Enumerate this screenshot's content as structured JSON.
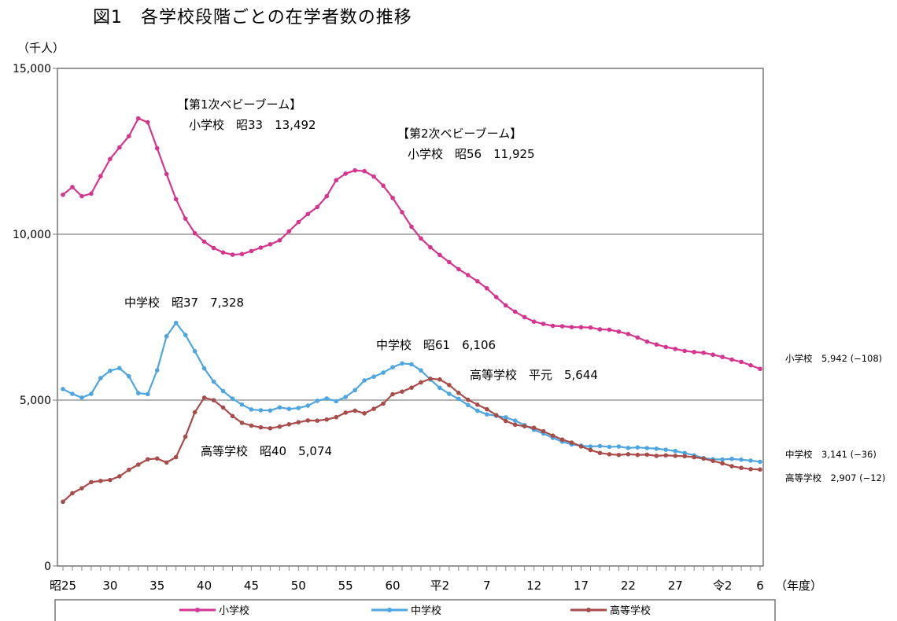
{
  "chart_data": {
    "type": "line",
    "title": "図1　各学校段階ごとの在学者数の推移",
    "ylabel": "（千人）",
    "xlabel": "（年度）",
    "ylim": [
      0,
      15000
    ],
    "yticks": [
      "0",
      "5,000",
      "10,000",
      "15,000"
    ],
    "ytick_values": [
      0,
      5000,
      10000,
      15000
    ],
    "grid": "horizontal at 5,000 and 10,000",
    "legend_position": "bottom",
    "x_years": [
      1950,
      1951,
      1952,
      1953,
      1954,
      1955,
      1956,
      1957,
      1958,
      1959,
      1960,
      1961,
      1962,
      1963,
      1964,
      1965,
      1966,
      1967,
      1968,
      1969,
      1970,
      1971,
      1972,
      1973,
      1974,
      1975,
      1976,
      1977,
      1978,
      1979,
      1980,
      1981,
      1982,
      1983,
      1984,
      1985,
      1986,
      1987,
      1988,
      1989,
      1990,
      1991,
      1992,
      1993,
      1994,
      1995,
      1996,
      1997,
      1998,
      1999,
      2000,
      2001,
      2002,
      2003,
      2004,
      2005,
      2006,
      2007,
      2008,
      2009,
      2010,
      2011,
      2012,
      2013,
      2014,
      2015,
      2016,
      2017,
      2018,
      2019,
      2020,
      2021,
      2022,
      2023,
      2024
    ],
    "xtick_labels": [
      {
        "label": "昭25",
        "year": 1950
      },
      {
        "label": "30",
        "year": 1955
      },
      {
        "label": "35",
        "year": 1960
      },
      {
        "label": "40",
        "year": 1965
      },
      {
        "label": "45",
        "year": 1970
      },
      {
        "label": "50",
        "year": 1975
      },
      {
        "label": "55",
        "year": 1980
      },
      {
        "label": "60",
        "year": 1985
      },
      {
        "label": "平2",
        "year": 1990
      },
      {
        "label": "7",
        "year": 1995
      },
      {
        "label": "12",
        "year": 2000
      },
      {
        "label": "17",
        "year": 2005
      },
      {
        "label": "22",
        "year": 2010
      },
      {
        "label": "27",
        "year": 2015
      },
      {
        "label": "令2",
        "year": 2020
      },
      {
        "label": "6",
        "year": 2024
      }
    ],
    "series": [
      {
        "name": "小学校",
        "color": "#d6358f",
        "values": [
          11191,
          11423,
          11148,
          11225,
          11751,
          12267,
          12616,
          12956,
          13492,
          13375,
          12591,
          11811,
          11057,
          10471,
          10030,
          9776,
          9584,
          9452,
          9383,
          9403,
          9493,
          9596,
          9696,
          9816,
          10089,
          10365,
          10610,
          10820,
          11147,
          11630,
          11827,
          11925,
          11902,
          11739,
          11465,
          11095,
          10665,
          10227,
          9873,
          9607,
          9374,
          9158,
          8948,
          8769,
          8583,
          8370,
          8106,
          7855,
          7664,
          7501,
          7366,
          7297,
          7239,
          7227,
          7201,
          7197,
          7188,
          7133,
          7122,
          7064,
          6993,
          6887,
          6765,
          6677,
          6600,
          6543,
          6484,
          6449,
          6428,
          6369,
          6301,
          6223,
          6152,
          6050,
          5942
        ]
      },
      {
        "name": "中学校",
        "color": "#4da6e0",
        "values": [
          5333,
          5188,
          5076,
          5188,
          5664,
          5884,
          5963,
          5718,
          5210,
          5181,
          5900,
          6925,
          7328,
          6964,
          6476,
          5957,
          5556,
          5271,
          5044,
          4865,
          4717,
          4694,
          4688,
          4780,
          4735,
          4762,
          4833,
          4978,
          5048,
          4967,
          5094,
          5300,
          5594,
          5706,
          5828,
          5990,
          6106,
          6081,
          5896,
          5619,
          5369,
          5188,
          5037,
          4850,
          4681,
          4570,
          4527,
          4481,
          4381,
          4244,
          4104,
          3992,
          3863,
          3748,
          3664,
          3627,
          3602,
          3615,
          3592,
          3600,
          3558,
          3574,
          3553,
          3536,
          3504,
          3465,
          3406,
          3333,
          3252,
          3218,
          3211,
          3229,
          3205,
          3177,
          3141
        ]
      },
      {
        "name": "高等学校",
        "color": "#a84c4a",
        "values": [
          1935,
          2193,
          2343,
          2528,
          2565,
          2592,
          2703,
          2898,
          3057,
          3216,
          3239,
          3119,
          3281,
          3897,
          4634,
          5074,
          4997,
          4776,
          4519,
          4315,
          4232,
          4178,
          4151,
          4201,
          4271,
          4333,
          4387,
          4381,
          4415,
          4485,
          4622,
          4682,
          4601,
          4737,
          4896,
          5178,
          5257,
          5375,
          5534,
          5644,
          5623,
          5455,
          5218,
          5010,
          4862,
          4725,
          4547,
          4371,
          4258,
          4212,
          4165,
          4062,
          3929,
          3810,
          3720,
          3605,
          3495,
          3407,
          3367,
          3347,
          3369,
          3349,
          3356,
          3320,
          3335,
          3319,
          3309,
          3280,
          3236,
          3168,
          3093,
          3008,
          2957,
          2919,
          2907
        ]
      }
    ],
    "annotations": [
      {
        "lines": [
          "【第1次ベビーブーム】",
          "小学校　昭33　13,492"
        ]
      },
      {
        "lines": [
          "【第2次ベビーブーム】",
          "小学校　昭56　11,925"
        ]
      },
      {
        "lines": [
          "中学校　昭37　7,328"
        ]
      },
      {
        "lines": [
          "中学校　昭61　6,106"
        ]
      },
      {
        "lines": [
          "高等学校　平元　5,644"
        ]
      },
      {
        "lines": [
          "高等学校　昭40　5,074"
        ]
      }
    ],
    "end_labels": [
      "小学校　5,942 (−108)",
      "中学校　3,141 (−36)",
      "高等学校　2,907 (−12)"
    ]
  }
}
